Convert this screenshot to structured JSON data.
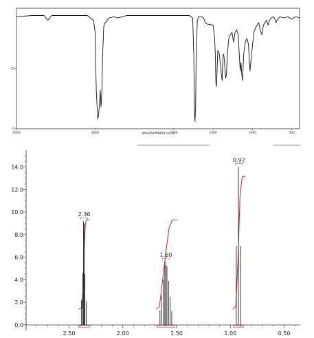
{
  "chart_data": [
    {
      "type": "line",
      "title": "",
      "xlabel": "WAVENUMBER(cm-1)",
      "ylabel": "",
      "xlim": [
        4000,
        400
      ],
      "ylim": [
        0,
        100
      ],
      "x_reversed": true,
      "grid": false,
      "x_ticks": [
        {
          "value": 4000,
          "label": "4000"
        },
        {
          "value": 3000,
          "label": "3000"
        },
        {
          "value": 2000,
          "label": "2000"
        },
        {
          "value": 1500,
          "label": "1500"
        },
        {
          "value": 1000,
          "label": "1000"
        },
        {
          "value": 500,
          "label": "500"
        }
      ],
      "y_ticks": [
        {
          "value": 0,
          "label": "0"
        },
        {
          "value": 50,
          "label": "50"
        }
      ],
      "series": [
        {
          "color": "#111111",
          "x": [
            4000,
            3800,
            3650,
            3600,
            3550,
            3400,
            3100,
            3020,
            3000,
            2985,
            2965,
            2955,
            2945,
            2935,
            2925,
            2915,
            2905,
            2890,
            2875,
            2865,
            2850,
            2820,
            2760,
            2720,
            2650,
            2600,
            2400,
            2200,
            2000,
            1900,
            1850,
            1800,
            1760,
            1745,
            1738,
            1730,
            1722,
            1715,
            1700,
            1680,
            1650,
            1620,
            1600,
            1580,
            1500,
            1480,
            1470,
            1465,
            1460,
            1455,
            1440,
            1420,
            1410,
            1400,
            1395,
            1385,
            1378,
            1370,
            1360,
            1350,
            1340,
            1330,
            1320,
            1300,
            1280,
            1260,
            1240,
            1220,
            1200,
            1180,
            1165,
            1155,
            1145,
            1135,
            1125,
            1120,
            1110,
            1090,
            1070,
            1050,
            1040,
            1030,
            1020,
            1010,
            1000,
            990,
            980,
            960,
            940,
            920,
            900,
            880,
            860,
            840,
            820,
            800,
            780,
            760,
            740,
            720,
            700,
            680,
            650,
            600,
            550,
            500,
            450,
            400
          ],
          "y": [
            93,
            94,
            94,
            90,
            94,
            94,
            94,
            90,
            80,
            30,
            8,
            12,
            20,
            32,
            18,
            30,
            60,
            85,
            88,
            88,
            90,
            92,
            93,
            92,
            93,
            94,
            94,
            94,
            94,
            94,
            94,
            94,
            92,
            60,
            15,
            6,
            18,
            60,
            90,
            93,
            93,
            92,
            88,
            87,
            86,
            75,
            60,
            40,
            35,
            38,
            65,
            62,
            55,
            50,
            45,
            40,
            55,
            62,
            60,
            50,
            42,
            45,
            60,
            75,
            78,
            80,
            72,
            80,
            82,
            78,
            60,
            48,
            55,
            45,
            40,
            48,
            62,
            72,
            75,
            70,
            58,
            48,
            55,
            62,
            68,
            75,
            80,
            84,
            86,
            88,
            82,
            78,
            86,
            88,
            90,
            86,
            90,
            92,
            93,
            92,
            88,
            91,
            93,
            92,
            93,
            91,
            93,
            92
          ]
        }
      ]
    },
    {
      "type": "line",
      "title": "",
      "xlabel": "",
      "ylabel": "",
      "xlim": [
        2.9,
        0.35
      ],
      "ylim": [
        -0.5,
        15.5
      ],
      "x_reversed": true,
      "grid": false,
      "x_ticks": [
        {
          "value": 2.5,
          "label": "2.50"
        },
        {
          "value": 2.0,
          "label": "2.00"
        },
        {
          "value": 1.5,
          "label": "1.50"
        },
        {
          "value": 1.0,
          "label": "1.00"
        },
        {
          "value": 0.5,
          "label": "0.50"
        }
      ],
      "y_ticks": [
        {
          "value": 0,
          "label": "0.0"
        },
        {
          "value": 2,
          "label": "2.0"
        },
        {
          "value": 4,
          "label": "4.0"
        },
        {
          "value": 6,
          "label": "6.0"
        },
        {
          "value": 8,
          "label": "8.0"
        },
        {
          "value": 10,
          "label": "10.0"
        },
        {
          "value": 12,
          "label": "12.0"
        },
        {
          "value": 14,
          "label": "14.0"
        }
      ],
      "peaks": [
        {
          "label": "2.36",
          "center": 2.36,
          "lines": [
            {
              "ppm": 2.385,
              "height": 2.2
            },
            {
              "ppm": 2.372,
              "height": 4.6
            },
            {
              "ppm": 2.366,
              "height": 9.2
            },
            {
              "ppm": 2.36,
              "height": 9.0
            },
            {
              "ppm": 2.353,
              "height": 4.5
            },
            {
              "ppm": 2.34,
              "height": 2.1
            }
          ]
        },
        {
          "label": "1.60",
          "center": 1.6,
          "lines": [
            {
              "ppm": 1.655,
              "height": 1.3
            },
            {
              "ppm": 1.64,
              "height": 2.6
            },
            {
              "ppm": 1.625,
              "height": 4.0
            },
            {
              "ppm": 1.61,
              "height": 5.3
            },
            {
              "ppm": 1.6,
              "height": 5.6
            },
            {
              "ppm": 1.59,
              "height": 5.2
            },
            {
              "ppm": 1.575,
              "height": 3.9
            },
            {
              "ppm": 1.56,
              "height": 2.5
            },
            {
              "ppm": 1.545,
              "height": 1.2
            }
          ]
        },
        {
          "label": "0.92",
          "center": 0.92,
          "lines": [
            {
              "ppm": 0.945,
              "height": 7.0
            },
            {
              "ppm": 0.925,
              "height": 14.0
            },
            {
              "ppm": 0.905,
              "height": 7.0
            }
          ]
        }
      ],
      "integrals": [
        {
          "x": [
            2.41,
            2.38,
            2.37,
            2.36,
            2.35,
            2.34,
            2.31
          ],
          "y": [
            1.4,
            1.5,
            3.5,
            6.5,
            8.8,
            9.3,
            9.3
          ]
        },
        {
          "x": [
            1.69,
            1.66,
            1.63,
            1.6,
            1.57,
            1.54,
            1.49
          ],
          "y": [
            1.4,
            1.6,
            4.0,
            6.5,
            8.6,
            9.3,
            9.3
          ]
        },
        {
          "x": [
            0.98,
            0.95,
            0.93,
            0.92,
            0.91,
            0.89,
            0.86
          ],
          "y": [
            1.4,
            1.6,
            5.5,
            8.5,
            11.5,
            13.1,
            13.2
          ]
        }
      ]
    }
  ]
}
